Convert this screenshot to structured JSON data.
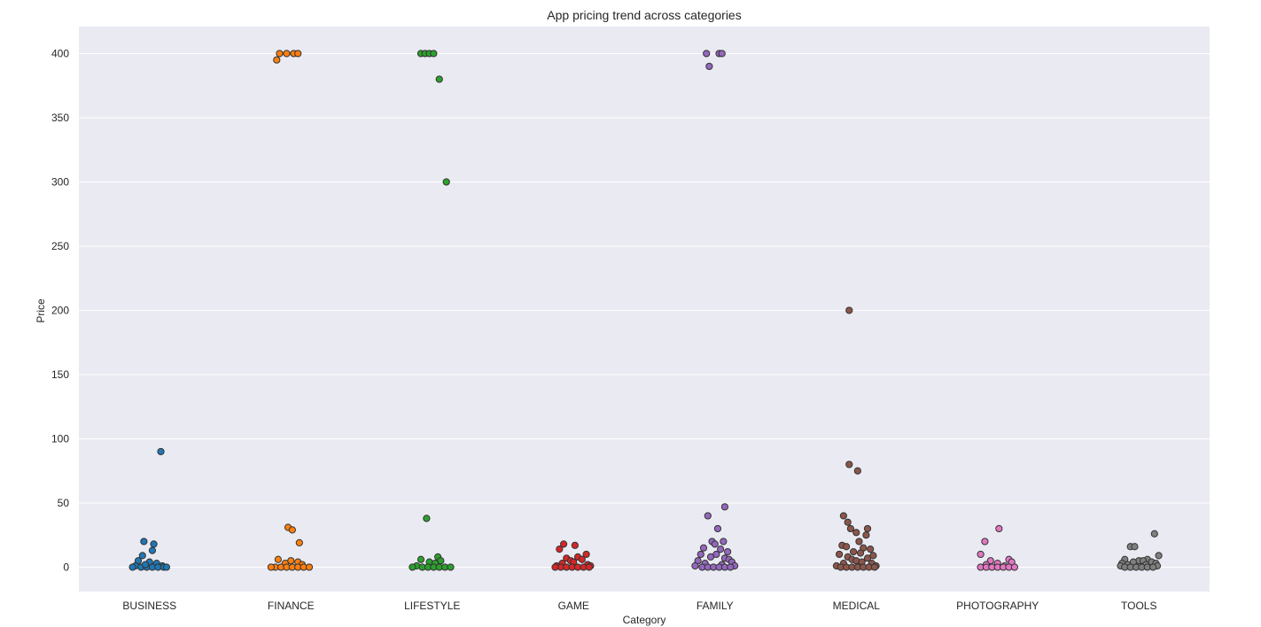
{
  "chart_data": {
    "type": "scatter",
    "title": "App pricing trend across categories",
    "xlabel": "Category",
    "ylabel": "Price",
    "ylim": [
      -19,
      421
    ],
    "yticks": [
      0,
      50,
      100,
      150,
      200,
      250,
      300,
      350,
      400
    ],
    "grid": true,
    "legend": "none",
    "categories": [
      "BUSINESS",
      "FINANCE",
      "LIFESTYLE",
      "GAME",
      "FAMILY",
      "MEDICAL",
      "PHOTOGRAPHY",
      "TOOLS"
    ],
    "series": [
      {
        "category": "BUSINESS",
        "color": "#1f77b4",
        "points": [
          [
            0.08,
            90
          ],
          [
            -0.04,
            20
          ],
          [
            0.03,
            18
          ],
          [
            0.02,
            13
          ],
          [
            -0.05,
            9
          ],
          [
            -0.08,
            5
          ],
          [
            0.0,
            4
          ],
          [
            0.05,
            3
          ],
          [
            -0.1,
            1
          ],
          [
            0.09,
            1
          ],
          [
            -0.06,
            0
          ],
          [
            -0.02,
            0
          ],
          [
            0.02,
            0
          ],
          [
            0.06,
            0
          ],
          [
            0.1,
            0
          ],
          [
            -0.12,
            0
          ],
          [
            0.12,
            0
          ],
          [
            -0.03,
            2
          ]
        ]
      },
      {
        "category": "FINANCE",
        "color": "#ff7f0e",
        "points": [
          [
            -0.08,
            400
          ],
          [
            -0.03,
            400
          ],
          [
            0.02,
            400
          ],
          [
            0.05,
            400
          ],
          [
            -0.1,
            395
          ],
          [
            -0.02,
            31
          ],
          [
            0.01,
            29
          ],
          [
            0.06,
            19
          ],
          [
            -0.09,
            6
          ],
          [
            0.0,
            5
          ],
          [
            0.05,
            4
          ],
          [
            -0.04,
            3
          ],
          [
            0.08,
            2
          ],
          [
            -0.11,
            0
          ],
          [
            -0.07,
            0
          ],
          [
            -0.03,
            0
          ],
          [
            0.01,
            0
          ],
          [
            0.05,
            0
          ],
          [
            0.09,
            0
          ],
          [
            0.13,
            0
          ],
          [
            -0.14,
            0
          ]
        ]
      },
      {
        "category": "LIFESTYLE",
        "color": "#2ca02c",
        "points": [
          [
            -0.08,
            400
          ],
          [
            -0.05,
            400
          ],
          [
            -0.02,
            400
          ],
          [
            0.01,
            400
          ],
          [
            0.05,
            380
          ],
          [
            0.1,
            300
          ],
          [
            -0.04,
            38
          ],
          [
            -0.08,
            6
          ],
          [
            0.04,
            8
          ],
          [
            0.06,
            5
          ],
          [
            -0.02,
            4
          ],
          [
            0.02,
            3
          ],
          [
            -0.11,
            1
          ],
          [
            -0.07,
            0
          ],
          [
            -0.03,
            0
          ],
          [
            0.01,
            0
          ],
          [
            0.05,
            0
          ],
          [
            0.09,
            0
          ],
          [
            0.13,
            0
          ],
          [
            -0.14,
            0
          ]
        ]
      },
      {
        "category": "GAME",
        "color": "#d62728",
        "points": [
          [
            -0.07,
            18
          ],
          [
            0.01,
            17
          ],
          [
            -0.1,
            14
          ],
          [
            0.09,
            10
          ],
          [
            0.03,
            8
          ],
          [
            -0.05,
            7
          ],
          [
            0.06,
            6
          ],
          [
            -0.02,
            5
          ],
          [
            0.0,
            4
          ],
          [
            -0.08,
            3
          ],
          [
            0.1,
            2
          ],
          [
            -0.12,
            1
          ],
          [
            0.12,
            1
          ],
          [
            -0.09,
            0
          ],
          [
            -0.05,
            0
          ],
          [
            -0.01,
            0
          ],
          [
            0.03,
            0
          ],
          [
            0.07,
            0
          ],
          [
            0.11,
            0
          ],
          [
            -0.13,
            0
          ]
        ]
      },
      {
        "category": "FAMILY",
        "color": "#9467bd",
        "points": [
          [
            -0.06,
            400
          ],
          [
            0.03,
            400
          ],
          [
            0.05,
            400
          ],
          [
            -0.04,
            390
          ],
          [
            0.07,
            47
          ],
          [
            -0.05,
            40
          ],
          [
            0.02,
            30
          ],
          [
            -0.02,
            20
          ],
          [
            0.06,
            20
          ],
          [
            0.0,
            18
          ],
          [
            -0.08,
            15
          ],
          [
            0.04,
            14
          ],
          [
            0.09,
            12
          ],
          [
            -0.1,
            10
          ],
          [
            0.01,
            10
          ],
          [
            -0.03,
            8
          ],
          [
            0.07,
            7
          ],
          [
            0.1,
            6
          ],
          [
            -0.12,
            5
          ],
          [
            0.12,
            4
          ],
          [
            -0.07,
            3
          ],
          [
            0.05,
            2
          ],
          [
            -0.14,
            1
          ],
          [
            0.14,
            1
          ],
          [
            -0.09,
            0
          ],
          [
            -0.05,
            0
          ],
          [
            -0.01,
            0
          ],
          [
            0.03,
            0
          ],
          [
            0.07,
            0
          ],
          [
            0.11,
            0
          ]
        ]
      },
      {
        "category": "MEDICAL",
        "color": "#8c564b",
        "points": [
          [
            -0.05,
            200
          ],
          [
            -0.05,
            80
          ],
          [
            0.01,
            75
          ],
          [
            -0.09,
            40
          ],
          [
            -0.06,
            35
          ],
          [
            -0.04,
            30
          ],
          [
            0.08,
            30
          ],
          [
            0.0,
            27
          ],
          [
            0.07,
            25
          ],
          [
            0.02,
            20
          ],
          [
            -0.1,
            17
          ],
          [
            -0.07,
            16
          ],
          [
            0.05,
            15
          ],
          [
            0.1,
            14
          ],
          [
            -0.02,
            12
          ],
          [
            0.03,
            11
          ],
          [
            -0.12,
            10
          ],
          [
            0.12,
            9
          ],
          [
            -0.06,
            8
          ],
          [
            0.08,
            7
          ],
          [
            -0.03,
            6
          ],
          [
            0.0,
            5
          ],
          [
            0.04,
            4
          ],
          [
            -0.09,
            3
          ],
          [
            0.11,
            3
          ],
          [
            -0.14,
            1
          ],
          [
            0.14,
            1
          ],
          [
            -0.11,
            0
          ],
          [
            -0.07,
            0
          ],
          [
            -0.03,
            0
          ],
          [
            0.01,
            0
          ],
          [
            0.05,
            0
          ],
          [
            0.09,
            0
          ],
          [
            0.13,
            0
          ]
        ]
      },
      {
        "category": "PHOTOGRAPHY",
        "color": "#e377c2",
        "points": [
          [
            0.01,
            30
          ],
          [
            -0.09,
            20
          ],
          [
            -0.12,
            10
          ],
          [
            0.08,
            6
          ],
          [
            -0.05,
            5
          ],
          [
            0.1,
            4
          ],
          [
            0.0,
            3
          ],
          [
            -0.08,
            2
          ],
          [
            0.05,
            1
          ],
          [
            -0.12,
            0
          ],
          [
            -0.08,
            0
          ],
          [
            -0.04,
            0
          ],
          [
            0.0,
            0
          ],
          [
            0.04,
            0
          ],
          [
            0.08,
            0
          ],
          [
            0.12,
            0
          ]
        ]
      },
      {
        "category": "TOOLS",
        "color": "#7f7f7f",
        "points": [
          [
            0.11,
            26
          ],
          [
            -0.06,
            16
          ],
          [
            -0.03,
            16
          ],
          [
            0.14,
            9
          ],
          [
            -0.1,
            6
          ],
          [
            0.06,
            6
          ],
          [
            0.0,
            5
          ],
          [
            0.03,
            5
          ],
          [
            -0.04,
            4
          ],
          [
            0.09,
            4
          ],
          [
            -0.12,
            3
          ],
          [
            0.12,
            3
          ],
          [
            -0.08,
            2
          ],
          [
            0.05,
            2
          ],
          [
            -0.13,
            1
          ],
          [
            0.13,
            1
          ],
          [
            -0.1,
            0
          ],
          [
            -0.06,
            0
          ],
          [
            -0.02,
            0
          ],
          [
            0.02,
            0
          ],
          [
            0.06,
            0
          ],
          [
            0.1,
            0
          ]
        ]
      }
    ]
  }
}
